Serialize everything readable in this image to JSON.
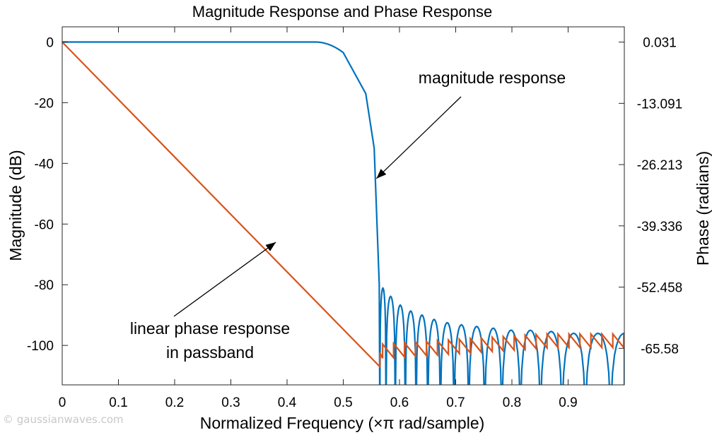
{
  "chart_data": {
    "type": "line",
    "title": "Magnitude Response and Phase Response",
    "xlabel": "Normalized Frequency (×π rad/sample)",
    "ylabel_left": "Magnitude (dB)",
    "ylabel_right": "Phase (radians)",
    "xlim": [
      0,
      1
    ],
    "ylim_left": [
      -113,
      5
    ],
    "ylim_right": [
      -73.4,
      3.3
    ],
    "x_ticks": [
      "0",
      "0.1",
      "0.2",
      "0.3",
      "0.4",
      "0.5",
      "0.6",
      "0.7",
      "0.8",
      "0.9"
    ],
    "y_ticks_left": [
      "0",
      "-20",
      "-40",
      "-60",
      "-80",
      "-100"
    ],
    "y_ticks_right": [
      "0.031",
      "-13.091",
      "-26.213",
      "-39.336",
      "-52.458",
      "-65.58"
    ],
    "grid": false,
    "series": [
      {
        "name": "magnitude response",
        "axis": "left",
        "color": "#0072BD",
        "passband_edge": 0.45,
        "cutoff": 0.565,
        "magnitude_at": [
          [
            0,
            0
          ],
          [
            0.45,
            0
          ],
          [
            0.5,
            -3.5
          ],
          [
            0.54,
            -17
          ],
          [
            0.555,
            -35
          ],
          [
            0.565,
            -85
          ]
        ],
        "stopband_lobe_peaks": [
          [
            0.57,
            -81
          ],
          [
            0.59,
            -85
          ],
          [
            0.61,
            -88
          ],
          [
            0.64,
            -90
          ],
          [
            0.67,
            -92
          ],
          [
            0.7,
            -93
          ],
          [
            0.75,
            -94
          ],
          [
            0.8,
            -95
          ],
          [
            0.85,
            -95
          ],
          [
            0.9,
            -96
          ],
          [
            0.95,
            -96
          ],
          [
            1.0,
            -96
          ]
        ]
      },
      {
        "name": "phase",
        "axis": "right",
        "color": "#D95319",
        "linear_from": [
          0,
          0.031
        ],
        "linear_to": [
          0.565,
          -69.5
        ],
        "stopband_sawtooth_range": [
          -68,
          -62.5
        ]
      }
    ],
    "annotations": [
      {
        "text": "magnitude response"
      },
      {
        "text": "linear phase response"
      },
      {
        "text": "in passband"
      }
    ]
  },
  "watermark": "© gaussianwaves.com"
}
